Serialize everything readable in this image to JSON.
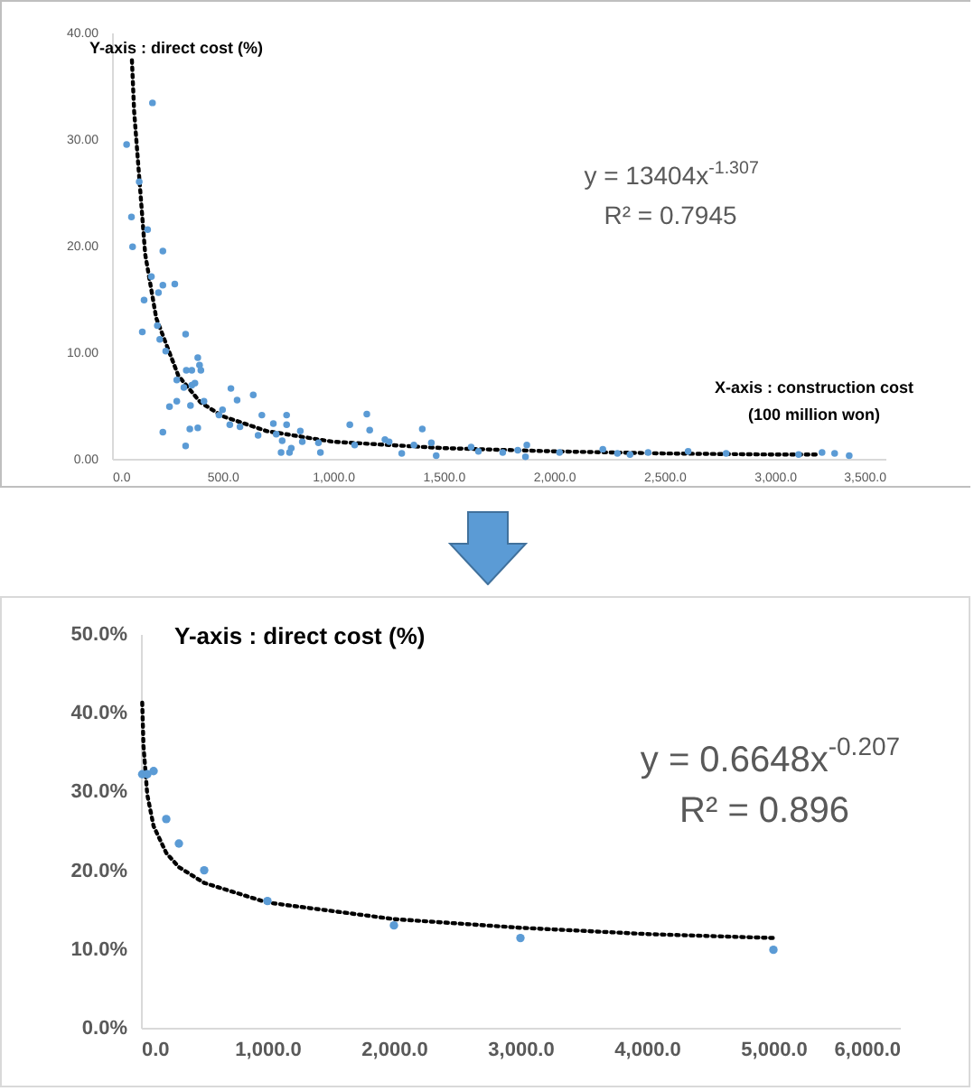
{
  "chart_data": [
    {
      "type": "scatter",
      "xlabel": "X-axis :  construction cost\n(100 million won)",
      "ylabel": "Y-axis : direct cost (%)",
      "annotations": [
        "y = 13404x$^{-1.307}$",
        "R² = 0.7945"
      ],
      "xlim": [
        0,
        3500
      ],
      "ylim": [
        0,
        40
      ],
      "xticks": [
        {
          "value": 0,
          "label": "0.0"
        },
        {
          "value": 500,
          "label": "500.0"
        },
        {
          "value": 1000,
          "label": "1,000.0"
        },
        {
          "value": 1500,
          "label": "1,500.0"
        },
        {
          "value": 2000,
          "label": "2,000.0"
        },
        {
          "value": 2500,
          "label": "2,500.0"
        },
        {
          "value": 3000,
          "label": "3,000.0"
        },
        {
          "value": 3500,
          "label": "3,500.0"
        }
      ],
      "yticks": [
        {
          "value": 0,
          "label": "0.00"
        },
        {
          "value": 10,
          "label": "10.00"
        },
        {
          "value": 20,
          "label": "20.00"
        },
        {
          "value": 30,
          "label": "30.00"
        },
        {
          "value": 40,
          "label": "40.00"
        }
      ],
      "series": [
        {
          "marker": "circle",
          "color": "#5b9bd5",
          "x": [
            183,
            66,
            123,
            88,
            161,
            93,
            230,
            178,
            284,
            230,
            210,
            145,
            137,
            205,
            216,
            243,
            333,
            388,
            396,
            336,
            361,
            402,
            293,
            375,
            325,
            361,
            416,
            293,
            260,
            355,
            230,
            352,
            388,
            333,
            538,
            566,
            639,
            500,
            484,
            533,
            579,
            661,
            678,
            730,
            790,
            790,
            743,
            770,
            852,
            811,
            765,
            803,
            861,
            934,
            943,
            1076,
            1153,
            1166,
            1098,
            1235,
            1254,
            1311,
            1366,
            1404,
            1445,
            1467,
            1625,
            1658,
            1768,
            1836,
            1877,
            1871,
            2025,
            2221,
            2287,
            2344,
            2426,
            2607,
            2779,
            3107,
            3213,
            3270,
            3336
          ],
          "values": [
            33.4,
            29.5,
            26.0,
            22.7,
            21.5,
            19.9,
            19.5,
            17.1,
            16.4,
            16.3,
            15.6,
            14.9,
            11.9,
            12.5,
            11.2,
            10.1,
            11.7,
            9.5,
            8.8,
            8.3,
            8.3,
            8.3,
            7.4,
            7.1,
            6.7,
            6.9,
            5.4,
            5.4,
            4.9,
            5.0,
            2.5,
            2.8,
            2.9,
            1.2,
            6.6,
            5.5,
            6.0,
            4.6,
            4.1,
            3.2,
            3.0,
            2.2,
            4.1,
            3.3,
            4.1,
            3.2,
            2.3,
            1.7,
            2.6,
            1.0,
            0.6,
            0.6,
            1.6,
            1.5,
            0.6,
            3.2,
            4.2,
            2.7,
            1.3,
            1.8,
            1.6,
            0.5,
            1.3,
            2.8,
            1.5,
            0.3,
            1.1,
            0.7,
            0.6,
            0.8,
            1.3,
            0.2,
            0.6,
            0.9,
            0.5,
            0.4,
            0.6,
            0.7,
            0.5,
            0.4,
            0.6,
            0.5,
            0.3
          ]
        },
        {
          "type": "line",
          "color": "#000000",
          "line_style": "dotted",
          "x": [
            90,
            100,
            150,
            200,
            300,
            400,
            500,
            700,
            1000,
            1500,
            2000,
            2500,
            3000,
            3200
          ],
          "values": [
            37.4,
            32.6,
            19.2,
            13.2,
            7.8,
            5.3,
            4.0,
            2.6,
            1.6,
            1.0,
            0.7,
            0.5,
            0.4,
            0.4
          ]
        }
      ]
    },
    {
      "type": "scatter",
      "ylabel": "Y-axis : direct cost (%)",
      "annotations": [
        "y = 0.6648x$^{-0.207}$",
        "R² = 0.896"
      ],
      "xlim": [
        0,
        6000
      ],
      "ylim": [
        0,
        50
      ],
      "xticks": [
        {
          "value": 0,
          "label": "0.0"
        },
        {
          "value": 1000,
          "label": "1,000.0"
        },
        {
          "value": 2000,
          "label": "2,000.0"
        },
        {
          "value": 3000,
          "label": "3,000.0"
        },
        {
          "value": 4000,
          "label": "4,000.0"
        },
        {
          "value": 5000,
          "label": "5,000.0"
        },
        {
          "value": 6000,
          "label": "6,000.0"
        }
      ],
      "yticks": [
        {
          "value": 0,
          "label": "0.0%"
        },
        {
          "value": 10,
          "label": "10.0%"
        },
        {
          "value": 20,
          "label": "20.0%"
        },
        {
          "value": 30,
          "label": "30.0%"
        },
        {
          "value": 40,
          "label": "40.0%"
        },
        {
          "value": 50,
          "label": "50.0%"
        }
      ],
      "series": [
        {
          "marker": "circle",
          "color": "#5b9bd5",
          "x": [
            10,
            50,
            100,
            200,
            300,
            500,
            1000,
            2000,
            3000,
            5000
          ],
          "values": [
            32.2,
            32.2,
            32.6,
            26.5,
            23.4,
            20.0,
            16.1,
            13.0,
            11.4,
            9.9
          ]
        },
        {
          "type": "line",
          "color": "#000000",
          "line_style": "dotted",
          "x": [
            10,
            20,
            50,
            100,
            200,
            300,
            500,
            1000,
            2000,
            3000,
            4000,
            5000
          ],
          "values": [
            41.3,
            35.8,
            29.6,
            25.6,
            22.2,
            20.4,
            18.4,
            15.9,
            13.8,
            12.7,
            11.9,
            11.4
          ]
        }
      ]
    }
  ]
}
